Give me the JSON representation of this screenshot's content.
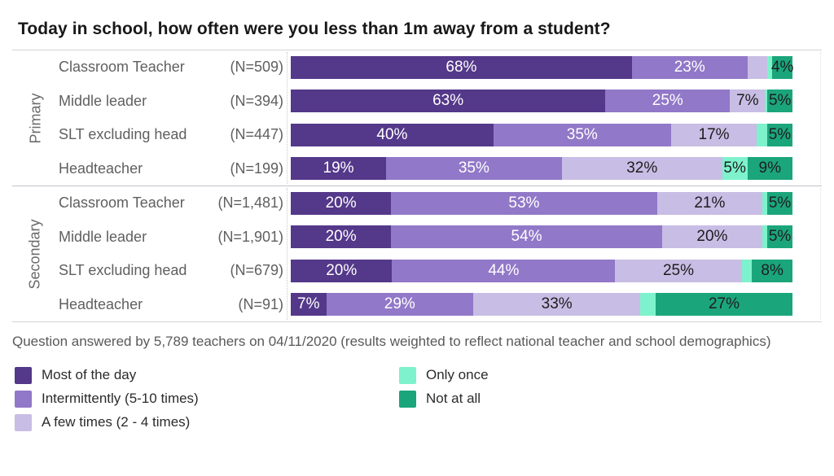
{
  "title": "Today in school, how often were you less than 1m away from a student?",
  "footnote": "Question answered by 5,789 teachers on 04/11/2020 (results weighted to reflect national teacher and school demographics)",
  "colors": {
    "most_of_the_day": "#54388a",
    "intermittently": "#9178c8",
    "a_few_times": "#c8bde4",
    "only_once": "#7ef2cc",
    "not_at_all": "#1ba57b"
  },
  "chart_data": {
    "type": "bar",
    "stacked": true,
    "orientation": "horizontal",
    "unit": "%",
    "categories": [
      "Most of the day",
      "Intermittently (5-10 times)",
      "A few times (2 - 4 times)",
      "Only once",
      "Not at all"
    ],
    "category_colors": [
      "#54388a",
      "#9178c8",
      "#c8bde4",
      "#7ef2cc",
      "#1ba57b"
    ],
    "category_text_colors": [
      "light",
      "light",
      "dark",
      "dark",
      "dark"
    ],
    "groups": [
      {
        "name": "Primary",
        "rows": [
          {
            "role": "Classroom Teacher",
            "n": "(N=509)",
            "values": [
              68,
              23,
              4,
              1,
              4
            ],
            "labels": [
              "68%",
              "23%",
              "",
              "",
              "4%"
            ]
          },
          {
            "role": "Middle leader",
            "n": "(N=394)",
            "values": [
              63,
              25,
              7,
              0.5,
              5
            ],
            "labels": [
              "63%",
              "25%",
              "7%",
              "",
              "5%"
            ]
          },
          {
            "role": "SLT excluding head",
            "n": "(N=447)",
            "values": [
              40,
              35,
              17,
              2,
              5
            ],
            "labels": [
              "40%",
              "35%",
              "17%",
              "",
              "5%"
            ]
          },
          {
            "role": "Headteacher",
            "n": "(N=199)",
            "values": [
              19,
              35,
              32,
              5,
              9
            ],
            "labels": [
              "19%",
              "35%",
              "32%",
              "5%",
              "9%"
            ]
          }
        ]
      },
      {
        "name": "Secondary",
        "rows": [
          {
            "role": "Classroom Teacher",
            "n": "(N=1,481)",
            "values": [
              20,
              53,
              21,
              1,
              5
            ],
            "labels": [
              "20%",
              "53%",
              "21%",
              "",
              "5%"
            ]
          },
          {
            "role": "Middle leader",
            "n": "(N=1,901)",
            "values": [
              20,
              54,
              20,
              1,
              5
            ],
            "labels": [
              "20%",
              "54%",
              "20%",
              "",
              "5%"
            ]
          },
          {
            "role": "SLT excluding head",
            "n": "(N=679)",
            "values": [
              20,
              44,
              25,
              2,
              8
            ],
            "labels": [
              "20%",
              "44%",
              "25%",
              "",
              "8%"
            ]
          },
          {
            "role": "Headteacher",
            "n": "(N=91)",
            "values": [
              7,
              29,
              33,
              3,
              27
            ],
            "labels": [
              "7%",
              "29%",
              "33%",
              "",
              "27%"
            ]
          }
        ]
      }
    ]
  },
  "legend": {
    "col1": [
      {
        "label": "Most of the day",
        "color": "#54388a"
      },
      {
        "label": "Intermittently (5-10 times)",
        "color": "#9178c8"
      },
      {
        "label": "A few times (2 - 4 times)",
        "color": "#c8bde4"
      }
    ],
    "col2": [
      {
        "label": "Only once",
        "color": "#7ef2cc"
      },
      {
        "label": "Not at all",
        "color": "#1ba57b"
      }
    ]
  }
}
